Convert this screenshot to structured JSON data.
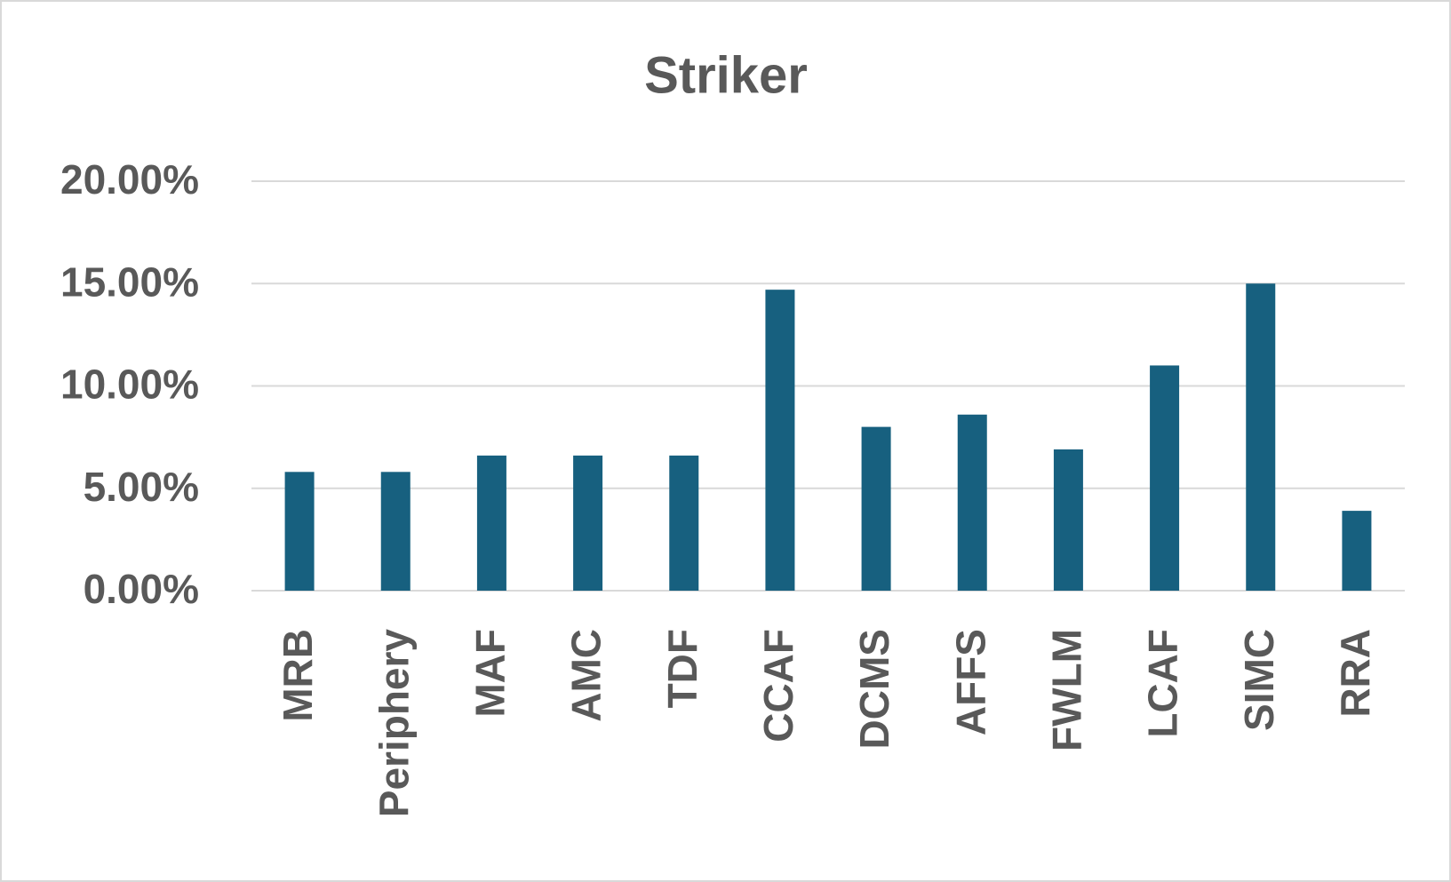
{
  "chart_data": {
    "type": "bar",
    "title": "Striker",
    "categories": [
      "MRB",
      "Periphery",
      "MAF",
      "AMC",
      "TDF",
      "CCAF",
      "DCMS",
      "AFFS",
      "FWLM",
      "LCAF",
      "SIMC",
      "RRA"
    ],
    "values": [
      5.8,
      5.8,
      6.6,
      6.6,
      6.6,
      14.7,
      8.0,
      8.6,
      6.9,
      11.0,
      15.0,
      3.9
    ],
    "color": "#17607f",
    "ylim": [
      0,
      20
    ],
    "yticks": [
      {
        "value": 0,
        "label": "0.00%"
      },
      {
        "value": 5,
        "label": "5.00%"
      },
      {
        "value": 10,
        "label": "10.00%"
      },
      {
        "value": 15,
        "label": "15.00%"
      },
      {
        "value": 20,
        "label": "20.00%"
      }
    ],
    "grid": true
  }
}
